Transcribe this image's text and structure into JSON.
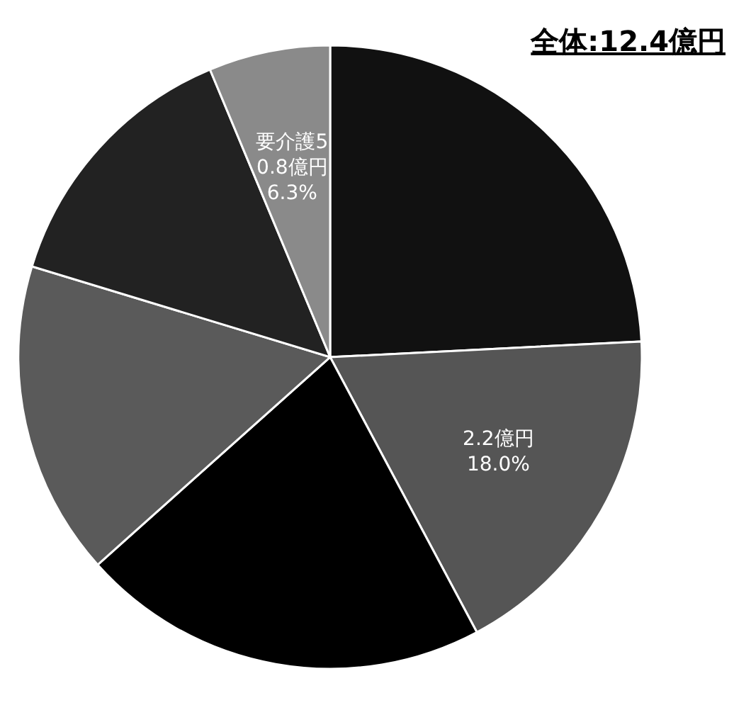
{
  "chart_data": {
    "type": "pie",
    "title": "全体:12.4億円",
    "categories": [
      null,
      null,
      null,
      null,
      null,
      "要介護5"
    ],
    "values": [
      24.2,
      18.0,
      21.2,
      16.3,
      14.0,
      6.3
    ],
    "colors": [
      "#111111",
      "#555555",
      "#000000",
      "#5a5a5a",
      "#222222",
      "#8a8a8a"
    ],
    "value_labels": [
      null,
      "2.2億円\n18.0%",
      null,
      null,
      null,
      "0.8億円\n6.3%"
    ]
  }
}
